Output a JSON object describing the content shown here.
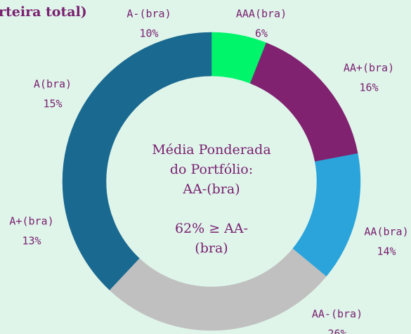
{
  "chart_data": {
    "type": "donut",
    "title": "rteira total)",
    "categories": [
      "AAA(bra)",
      "AA+(bra)",
      "AA(bra)",
      "AA-(bra)",
      "A+(bra)",
      "A(bra)",
      "A-(bra)"
    ],
    "values": [
      6,
      16,
      14,
      26,
      13,
      15,
      10
    ],
    "value_labels": [
      "6%",
      "16%",
      "14%",
      "26%",
      "13%",
      "15%",
      "10%"
    ],
    "colors": [
      "#00f56a",
      "#80226f",
      "#2aa4da",
      "#c0c0c0",
      "#1a6990",
      "#1a6990",
      "#1a6990"
    ],
    "center_text": [
      "Média Ponderada",
      "do Portfólio:",
      "AA-(bra)",
      "62% ≥ AA-",
      "(bra)"
    ]
  }
}
